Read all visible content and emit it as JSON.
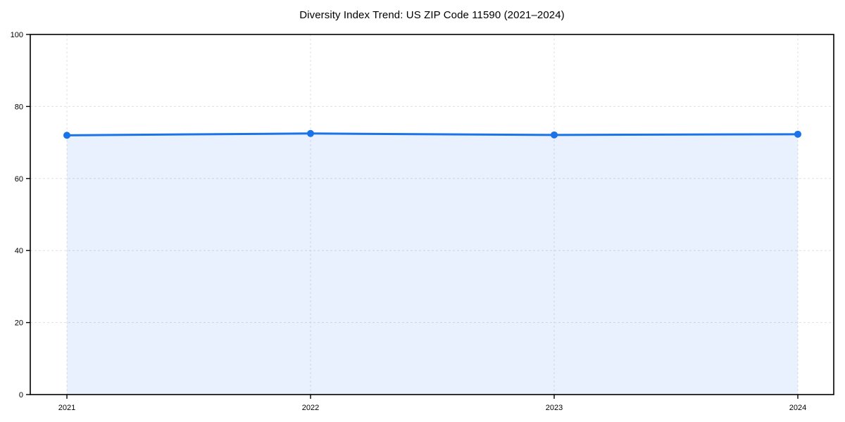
{
  "chart_data": {
    "type": "area",
    "title": "Diversity Index Trend: US ZIP Code 11590 (2021–2024)",
    "categories": [
      "2021",
      "2022",
      "2023",
      "2024"
    ],
    "values": [
      72.0,
      72.5,
      72.1,
      72.3
    ],
    "xlabel": "",
    "ylabel": "",
    "ylim": [
      0,
      100
    ],
    "y_ticks": [
      0,
      20,
      40,
      60,
      80,
      100
    ],
    "grid": "dashed",
    "legend": "none",
    "marker": "circle",
    "colors": {
      "line": "#1a73e8",
      "marker": "#1a73e8",
      "fill": "#1a73e8",
      "fill_opacity": 0.1,
      "grid": "#e0e0e0",
      "axis": "#000000",
      "text": "#000000",
      "background": "#ffffff"
    }
  }
}
